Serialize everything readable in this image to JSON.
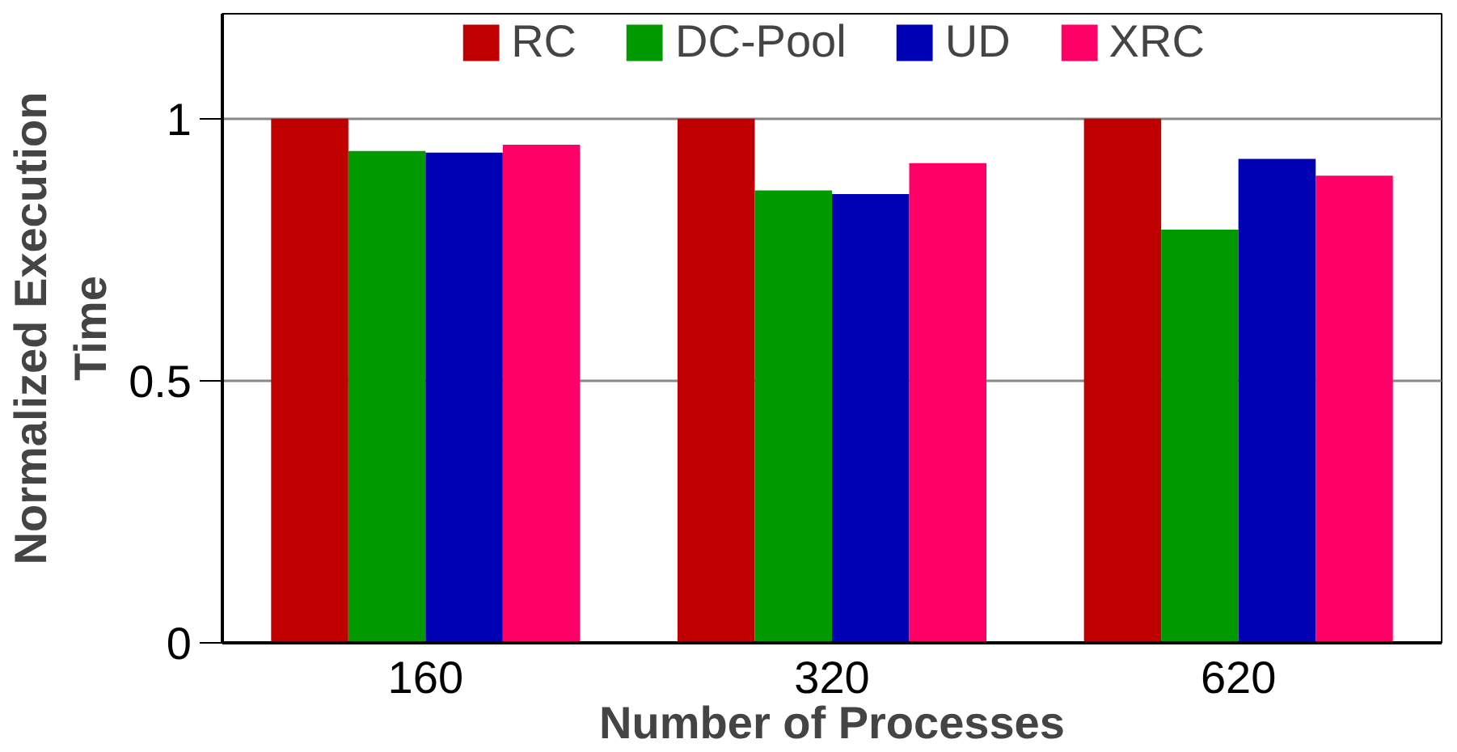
{
  "chart_data": {
    "type": "bar",
    "xlabel": "Number of Processes",
    "ylabel": "Normalized Execution\nTime",
    "categories": [
      "160",
      "320",
      "620"
    ],
    "series": [
      {
        "name": "RC",
        "color": "#c00000",
        "values": [
          1,
          1,
          1
        ]
      },
      {
        "name": "DC-Pool",
        "color": "#009900",
        "values": [
          0.938,
          0.863,
          0.788
        ]
      },
      {
        "name": "UD",
        "color": "#0000b4",
        "values": [
          0.935,
          0.856,
          0.923
        ]
      },
      {
        "name": "XRC",
        "color": "#ff0066",
        "values": [
          0.95,
          0.915,
          0.891
        ]
      }
    ],
    "ylim": [
      0,
      1.2
    ],
    "yticks": [
      0,
      0.5,
      1
    ],
    "grid": "y",
    "legend": "top"
  }
}
